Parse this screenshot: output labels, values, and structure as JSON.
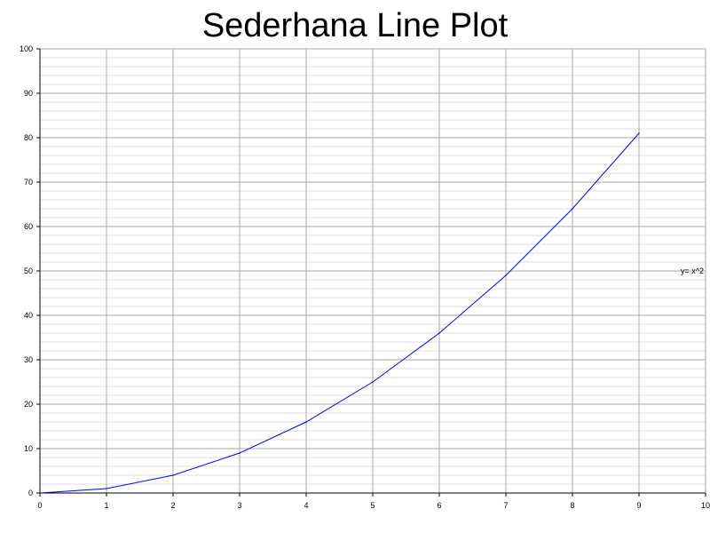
{
  "chart_data": {
    "type": "line",
    "title": "Sederhana Line Plot",
    "xlabel": "",
    "ylabel": "",
    "xlim": [
      0,
      10
    ],
    "ylim": [
      0,
      100
    ],
    "x_ticks": [
      0,
      1,
      2,
      3,
      4,
      5,
      6,
      7,
      8,
      9,
      10
    ],
    "y_ticks": [
      0,
      10,
      20,
      30,
      40,
      50,
      60,
      70,
      80,
      90,
      100
    ],
    "grid": true,
    "series": [
      {
        "x": [
          0,
          1,
          2,
          3,
          4,
          5,
          6,
          7,
          8,
          9
        ],
        "y": [
          0,
          1,
          4,
          9,
          16,
          25,
          36,
          49,
          64,
          81
        ],
        "color": "#0000ff"
      }
    ],
    "annotations": [
      {
        "text": "y= x^2",
        "x": 9.8,
        "y": 50
      }
    ]
  }
}
